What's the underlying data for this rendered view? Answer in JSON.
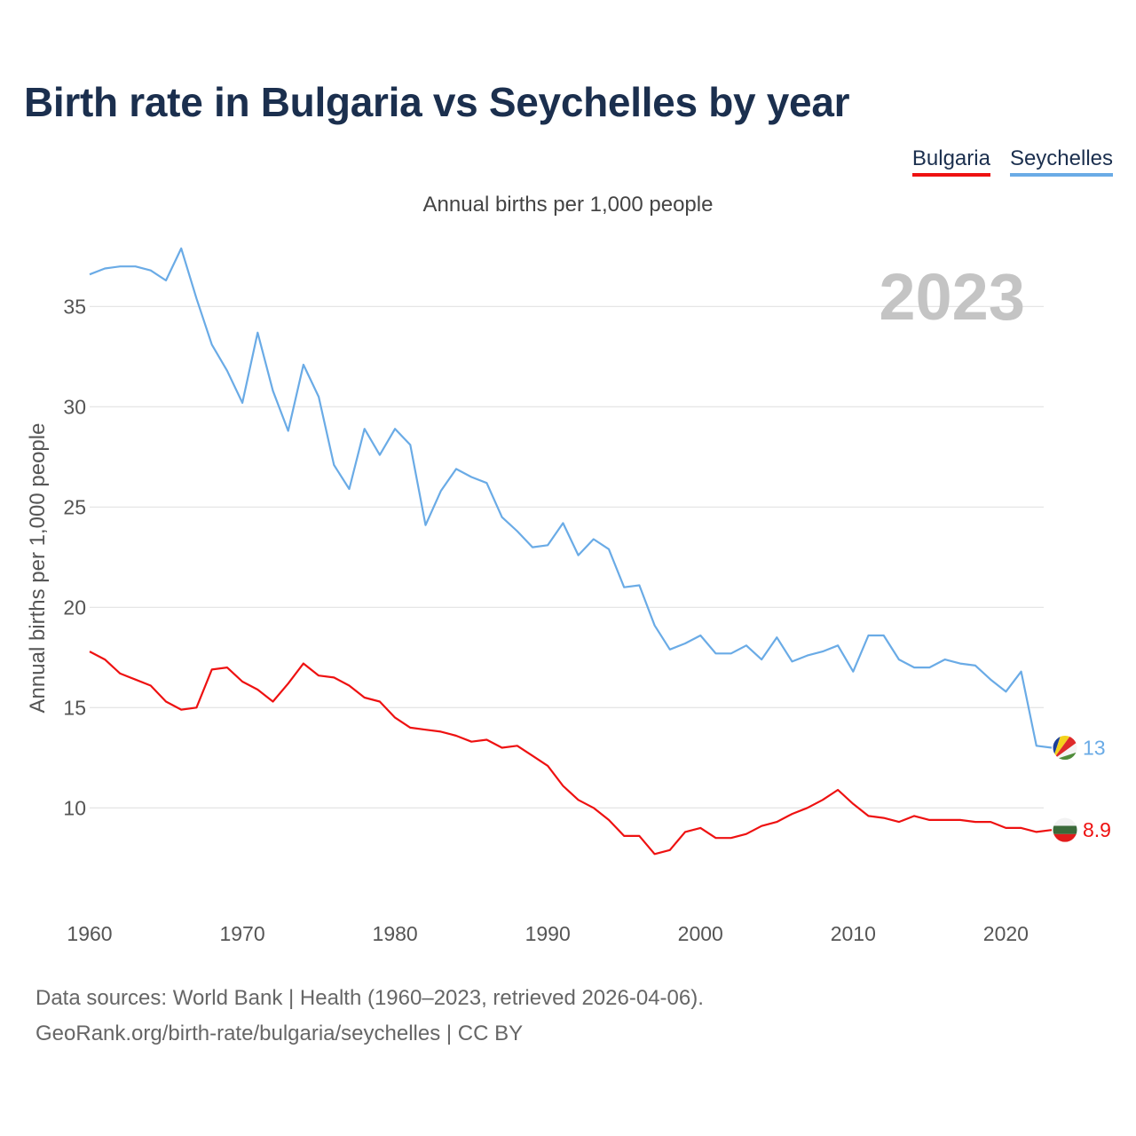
{
  "header": {
    "title": "Birth rate in Bulgaria vs Seychelles by year",
    "subtitle": "Annual births per 1,000 people"
  },
  "legend": [
    {
      "label": "Bulgaria",
      "color": "#ee1111"
    },
    {
      "label": "Seychelles",
      "color": "#6aabe6"
    }
  ],
  "footer": {
    "line1": "Data sources: World Bank | Health (1960–2023, retrieved 2026-04-06).",
    "line2": "GeoRank.org/birth-rate/bulgaria/seychelles | CC BY"
  },
  "chart_data": {
    "type": "line",
    "title": "Birth rate in Bulgaria vs Seychelles by year",
    "subtitle": "Annual births per 1,000 people",
    "ylabel": "Annual births per 1,000 people",
    "xlabel": "",
    "year_label": "2023",
    "xlim": [
      1960,
      2023
    ],
    "ylim": [
      5.5,
      39
    ],
    "xticks": [
      1960,
      1970,
      1980,
      1990,
      2000,
      2010,
      2020
    ],
    "yticks": [
      10,
      15,
      20,
      25,
      30,
      35
    ],
    "grid": true,
    "x": [
      1960,
      1961,
      1962,
      1963,
      1964,
      1965,
      1966,
      1967,
      1968,
      1969,
      1970,
      1971,
      1972,
      1973,
      1974,
      1975,
      1976,
      1977,
      1978,
      1979,
      1980,
      1981,
      1982,
      1983,
      1984,
      1985,
      1986,
      1987,
      1988,
      1989,
      1990,
      1991,
      1992,
      1993,
      1994,
      1995,
      1996,
      1997,
      1998,
      1999,
      2000,
      2001,
      2002,
      2003,
      2004,
      2005,
      2006,
      2007,
      2008,
      2009,
      2010,
      2011,
      2012,
      2013,
      2014,
      2015,
      2016,
      2017,
      2018,
      2019,
      2020,
      2021,
      2022,
      2023
    ],
    "series": [
      {
        "name": "Bulgaria",
        "color": "#ee1111",
        "end_label": "8.9",
        "flag_icon": "bulgaria-flag-icon",
        "values": [
          17.8,
          17.4,
          16.7,
          16.4,
          16.1,
          15.3,
          14.9,
          15.0,
          16.9,
          17.0,
          16.3,
          15.9,
          15.3,
          16.2,
          17.2,
          16.6,
          16.5,
          16.1,
          15.5,
          15.3,
          14.5,
          14.0,
          13.9,
          13.8,
          13.6,
          13.3,
          13.4,
          13.0,
          13.1,
          12.6,
          12.1,
          11.1,
          10.4,
          10.0,
          9.4,
          8.6,
          8.6,
          7.7,
          7.9,
          8.8,
          9.0,
          8.5,
          8.5,
          8.7,
          9.1,
          9.3,
          9.7,
          10.0,
          10.4,
          10.9,
          10.2,
          9.6,
          9.5,
          9.3,
          9.6,
          9.4,
          9.4,
          9.4,
          9.3,
          9.3,
          9.0,
          9.0,
          8.8,
          8.9
        ]
      },
      {
        "name": "Seychelles",
        "color": "#6aabe6",
        "end_label": "13",
        "flag_icon": "seychelles-flag-icon",
        "values": [
          36.6,
          36.9,
          37.0,
          37.0,
          36.8,
          36.3,
          37.9,
          35.4,
          33.1,
          31.8,
          30.2,
          33.7,
          30.8,
          28.8,
          32.1,
          30.5,
          27.1,
          25.9,
          28.9,
          27.6,
          28.9,
          28.1,
          24.1,
          25.8,
          26.9,
          26.5,
          26.2,
          24.5,
          23.8,
          23.0,
          23.1,
          24.2,
          22.6,
          23.4,
          22.9,
          21.0,
          21.1,
          19.1,
          17.9,
          18.2,
          18.6,
          17.7,
          17.7,
          18.1,
          17.4,
          18.5,
          17.3,
          17.6,
          17.8,
          18.1,
          16.8,
          18.6,
          18.6,
          17.4,
          17.0,
          17.0,
          17.4,
          17.2,
          17.1,
          16.4,
          15.8,
          16.8,
          13.1,
          13.0
        ]
      }
    ]
  }
}
